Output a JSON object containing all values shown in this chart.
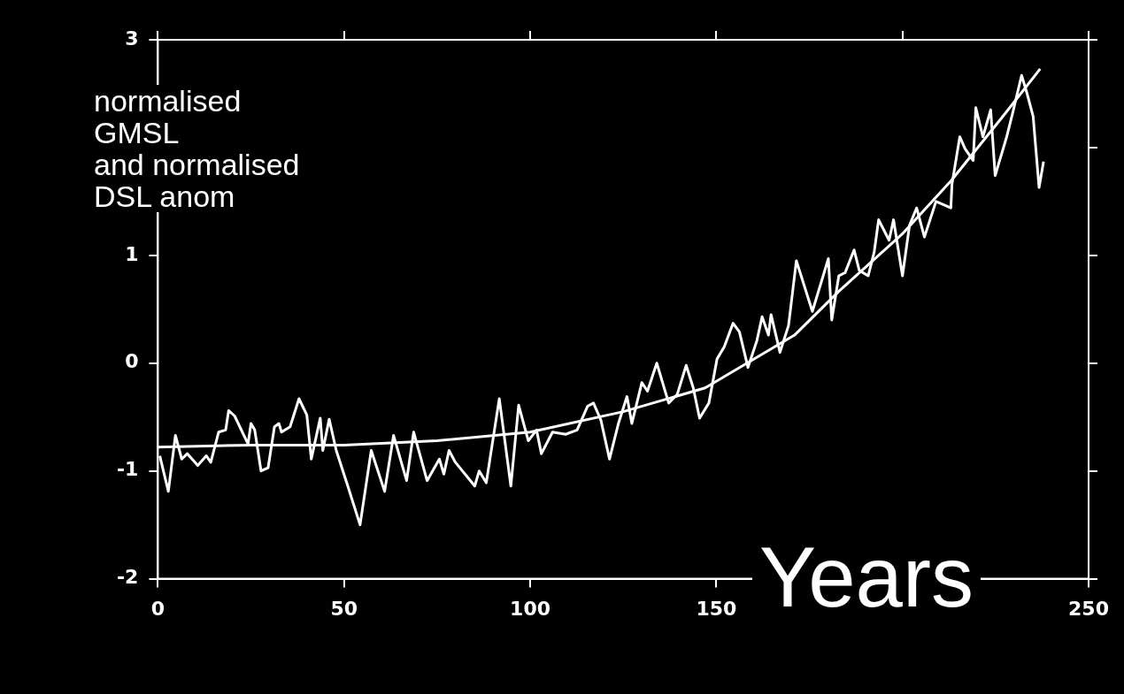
{
  "chart_data": {
    "type": "line",
    "ylabel": "normalised\nGMSL\nand normalised\nDSL anom",
    "xlabel": "Years",
    "xlim": [
      0,
      250
    ],
    "xticks": [
      0,
      50,
      100,
      150,
      {
        "value": 200,
        "label": null
      },
      250
    ],
    "ylim": [
      -2,
      3
    ],
    "yticks": [
      -2,
      -1,
      0,
      1,
      {
        "value": 2,
        "label": null
      },
      3
    ],
    "grid": false,
    "legend": false,
    "marker": "none",
    "line_style": "solid",
    "series": [
      {
        "color": "#ffffff",
        "x": [
          0.5,
          2.8,
          4.7,
          6.4,
          7.9,
          10.7,
          13,
          14.2,
          16.3,
          18.2,
          19,
          20.6,
          24.2,
          25,
          26,
          27.7,
          29.6,
          31.3,
          32.5,
          33.2,
          35.5,
          37.9,
          40,
          41.2,
          43.6,
          44.3,
          46,
          47.9,
          51,
          54.3,
          57.3,
          60.9,
          63.3,
          66.8,
          68.7,
          72.3,
          75.6,
          76.8,
          78.2,
          79.9,
          85.1,
          86.3,
          88.2,
          91.7,
          94.8,
          96.9,
          99.5,
          101.7,
          103,
          106,
          109.5,
          112.6,
          115.4,
          117,
          119,
          121.3,
          123.7,
          126,
          127.3,
          130,
          131.5,
          134,
          137.2,
          139.5,
          141.9,
          143.8,
          145.5,
          148,
          150.2,
          152.1,
          154.5,
          156.2,
          158.5,
          160.9,
          162.3,
          164,
          164.7,
          167.1,
          169.4,
          171.5,
          175.8,
          180.1,
          181,
          182.9,
          184.6,
          187,
          188.4,
          190.8,
          192.4,
          193.6,
          196.4,
          197.6,
          200,
          201.9,
          203.8,
          205.9,
          209,
          213,
          213.3,
          215.4,
          216.8,
          219,
          219.7,
          221.6,
          223.7,
          224.9,
          228,
          229.6,
          232,
          233.4,
          235.1,
          236.7,
          237.9
        ],
        "values": [
          -0.86,
          -1.19,
          -0.67,
          -0.89,
          -0.84,
          -0.95,
          -0.86,
          -0.92,
          -0.64,
          -0.62,
          -0.44,
          -0.49,
          -0.75,
          -0.56,
          -0.62,
          -1.0,
          -0.97,
          -0.59,
          -0.56,
          -0.64,
          -0.59,
          -0.33,
          -0.48,
          -0.89,
          -0.51,
          -0.81,
          -0.52,
          -0.81,
          -1.14,
          -1.5,
          -0.81,
          -1.19,
          -0.67,
          -1.09,
          -0.64,
          -1.09,
          -0.89,
          -1.03,
          -0.81,
          -0.92,
          -1.14,
          -1.0,
          -1.11,
          -0.33,
          -1.14,
          -0.39,
          -0.72,
          -0.62,
          -0.84,
          -0.64,
          -0.66,
          -0.62,
          -0.4,
          -0.37,
          -0.53,
          -0.89,
          -0.56,
          -0.31,
          -0.56,
          -0.18,
          -0.26,
          0,
          -0.37,
          -0.29,
          -0.02,
          -0.23,
          -0.51,
          -0.37,
          0.04,
          0.15,
          0.37,
          0.29,
          -0.04,
          0.21,
          0.43,
          0.26,
          0.45,
          0.1,
          0.35,
          0.95,
          0.48,
          0.97,
          0.4,
          0.81,
          0.84,
          1.05,
          0.86,
          0.81,
          1.03,
          1.33,
          1.14,
          1.33,
          0.81,
          1.28,
          1.44,
          1.17,
          1.5,
          1.44,
          1.66,
          2.1,
          1.99,
          1.88,
          2.37,
          2.1,
          2.35,
          1.74,
          2.1,
          2.32,
          2.67,
          2.51,
          2.29,
          1.63,
          1.87
        ]
      },
      {
        "color": "#ffffff",
        "x": [
          0,
          25,
          50,
          75,
          100,
          125,
          147,
          171,
          183,
          200,
          213,
          227,
          237
        ],
        "values": [
          -0.78,
          -0.76,
          -0.76,
          -0.72,
          -0.64,
          -0.45,
          -0.23,
          0.26,
          0.67,
          1.2,
          1.69,
          2.29,
          2.73
        ]
      }
    ]
  }
}
